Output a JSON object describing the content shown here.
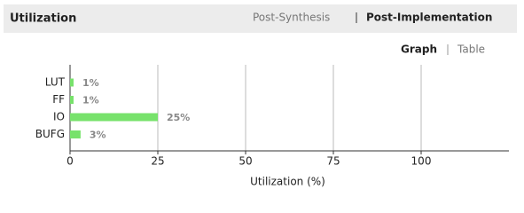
{
  "header": {
    "title": "Utilization",
    "tabs": [
      "Post-Synthesis",
      "Post-Implementation"
    ],
    "views": [
      "Graph",
      "Table"
    ]
  },
  "chart_data": {
    "type": "hbar",
    "categories": [
      "LUT",
      "FF",
      "IO",
      "BUFG"
    ],
    "values": [
      1,
      1,
      25,
      3
    ],
    "value_labels": [
      "1%",
      "1%",
      "25%",
      "3%"
    ],
    "color": "#77e26b",
    "xlabel": "Utilization (%)",
    "xlim": [
      0,
      125
    ],
    "xticks": [
      0,
      25,
      50,
      75,
      100
    ],
    "grid": true
  }
}
